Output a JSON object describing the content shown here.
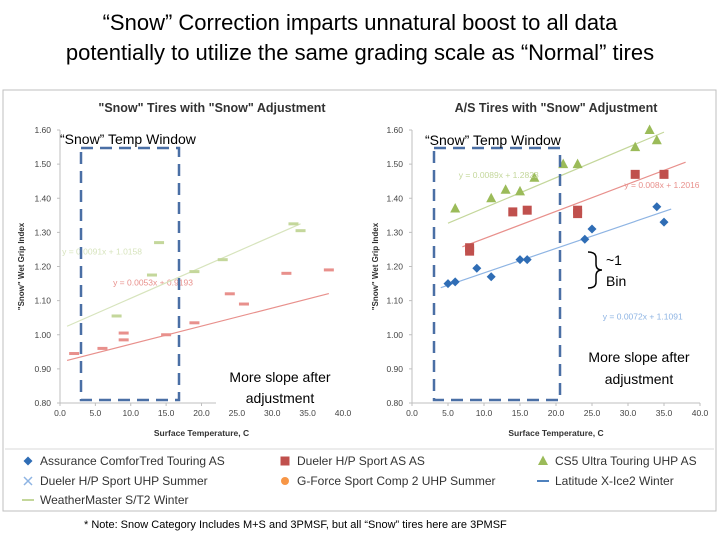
{
  "slide": {
    "title_line1": "“Snow” Correction imparts unnatural boost to all data",
    "title_line2": "potentially to utilize the same grading scale as “Normal” tires"
  },
  "colors": {
    "assurance": "#2f6db5",
    "dueler_hp": "#c0504d",
    "cs5": "#9bbb59",
    "dueler_uhp": "#8eb4e3",
    "gforce": "#f79646",
    "latitude": "#4f81bd",
    "weathermaster": "#c4d79b",
    "window_box": "#4a6fa5",
    "note_text": "#000000"
  },
  "annotations": {
    "window_label_left": "“Snow” Temp Window",
    "window_label_right": "“Snow” Temp Window",
    "slope_left_line1": "More slope after",
    "slope_left_line2": "adjustment",
    "slope_right_line1": "More slope after",
    "slope_right_line2": "adjustment",
    "bin_line1": "~1",
    "bin_line2": "Bin"
  },
  "footnote": "* Note: Snow Category Includes M+S and 3PMSF, but all “Snow” tires here are 3PMSF",
  "legend": [
    {
      "label": "Assurance ComforTred Touring AS",
      "marker": "diamond",
      "color": "#2f6db5"
    },
    {
      "label": "Dueler H/P Sport AS AS",
      "marker": "square",
      "color": "#c0504d"
    },
    {
      "label": "CS5 Ultra Touring UHP AS",
      "marker": "triangle",
      "color": "#9bbb59"
    },
    {
      "label": "Dueler H/P Sport UHP Summer",
      "marker": "x",
      "color": "#8eb4e3"
    },
    {
      "label": "G-Force Sport Comp 2 UHP Summer",
      "marker": "circle",
      "color": "#f79646"
    },
    {
      "label": "Latitude X-Ice2 Winter",
      "marker": "dash",
      "color": "#4f81bd"
    },
    {
      "label": "WeatherMaster S/T2 Winter",
      "marker": "dash",
      "color": "#c4d79b"
    }
  ],
  "chart_data": [
    {
      "type": "scatter",
      "title": "\"Snow\" Tires with \"Snow\" Adjustment",
      "xlabel": "Surface Temperature, C",
      "ylabel": "\"Snow\" Wet Grip Index",
      "xlim": [
        0,
        40
      ],
      "ylim": [
        0.8,
        1.6
      ],
      "xticks": [
        "0.0",
        "5.0",
        "10.0",
        "15.0",
        "20.0",
        "25.0",
        "30.0",
        "35.0",
        "40.0"
      ],
      "yticks": [
        "0.80",
        "0.90",
        "1.00",
        "1.10",
        "1.20",
        "1.30",
        "1.40",
        "1.50",
        "1.60"
      ],
      "series": [
        {
          "name": "Latitude X-Ice2 Winter",
          "color": "#e8908c",
          "marker": "dash",
          "points": [
            [
              2,
              0.945
            ],
            [
              6,
              0.96
            ],
            [
              9,
              0.985
            ],
            [
              9,
              1.005
            ],
            [
              15,
              1.0
            ],
            [
              19,
              1.035
            ],
            [
              24,
              1.12
            ],
            [
              26,
              1.09
            ],
            [
              32,
              1.18
            ],
            [
              38,
              1.19
            ]
          ],
          "trend": {
            "equation": "y = 0.0053x + 0.9193",
            "slope": 0.0053,
            "intercept": 0.9193,
            "color": "#e8908c",
            "x0": 1,
            "x1": 38,
            "label_x": 7.5,
            "label_y": 1.145
          }
        },
        {
          "name": "WeatherMaster S/T2 Winter",
          "color": "#c4d79b",
          "marker": "dash",
          "points": [
            [
              8,
              1.055
            ],
            [
              13,
              1.175
            ],
            [
              14,
              1.27
            ],
            [
              19,
              1.185
            ],
            [
              23,
              1.22
            ],
            [
              33,
              1.325
            ],
            [
              34,
              1.305
            ]
          ],
          "trend": {
            "equation": "y = 0.0091x + 1.0158",
            "slope": 0.0091,
            "intercept": 1.0158,
            "color": "#d7e4bd",
            "x0": 1,
            "x1": 34,
            "label_x": 0.3,
            "label_y": 1.235
          }
        }
      ]
    },
    {
      "type": "scatter",
      "title": "A/S Tires with \"Snow\" Adjustment",
      "xlabel": "Surface Temperature, C",
      "ylabel": "\"Snow\" Wet Grip Index",
      "xlim": [
        0,
        40
      ],
      "ylim": [
        0.8,
        1.6
      ],
      "xticks": [
        "0.0",
        "5.0",
        "10.0",
        "15.0",
        "20.0",
        "25.0",
        "30.0",
        "35.0",
        "40.0"
      ],
      "yticks": [
        "0.80",
        "0.90",
        "1.00",
        "1.10",
        "1.20",
        "1.30",
        "1.40",
        "1.50",
        "1.60"
      ],
      "series": [
        {
          "name": "Assurance ComforTred Touring AS",
          "color": "#2f6db5",
          "marker": "diamond",
          "points": [
            [
              5,
              1.15
            ],
            [
              6,
              1.155
            ],
            [
              9,
              1.195
            ],
            [
              11,
              1.17
            ],
            [
              15,
              1.22
            ],
            [
              16,
              1.22
            ],
            [
              24,
              1.28
            ],
            [
              25,
              1.31
            ],
            [
              34,
              1.375
            ],
            [
              35,
              1.33
            ]
          ],
          "trend": {
            "equation": "y = 0.0072x + 1.1091",
            "slope": 0.0072,
            "intercept": 1.1091,
            "color": "#8eb4e3",
            "x0": 4,
            "x1": 36,
            "label_x": 26.5,
            "label_y": 1.045
          }
        },
        {
          "name": "Dueler H/P Sport AS AS",
          "color": "#c0504d",
          "marker": "square",
          "points": [
            [
              8,
              1.255
            ],
            [
              8,
              1.245
            ],
            [
              14,
              1.36
            ],
            [
              16,
              1.365
            ],
            [
              23,
              1.365
            ],
            [
              23,
              1.355
            ],
            [
              31,
              1.47
            ],
            [
              35,
              1.47
            ]
          ],
          "trend": {
            "equation": "y = 0.008x + 1.2016",
            "slope": 0.008,
            "intercept": 1.2016,
            "color": "#e8908c",
            "x0": 7,
            "x1": 38,
            "label_x": 29.5,
            "label_y": 1.43
          }
        },
        {
          "name": "CS5 Ultra Touring UHP AS",
          "color": "#9bbb59",
          "marker": "triangle",
          "points": [
            [
              6,
              1.37
            ],
            [
              11,
              1.4
            ],
            [
              13,
              1.425
            ],
            [
              15,
              1.42
            ],
            [
              17,
              1.46
            ],
            [
              21,
              1.5
            ],
            [
              23,
              1.5
            ],
            [
              31,
              1.55
            ],
            [
              33,
              1.6
            ],
            [
              34,
              1.57
            ]
          ],
          "trend": {
            "equation": "y = 0.0089x + 1.2823",
            "slope": 0.0089,
            "intercept": 1.2823,
            "color": "#c4d79b",
            "x0": 5,
            "x1": 35,
            "label_x": 6.5,
            "label_y": 1.46
          }
        }
      ]
    }
  ]
}
